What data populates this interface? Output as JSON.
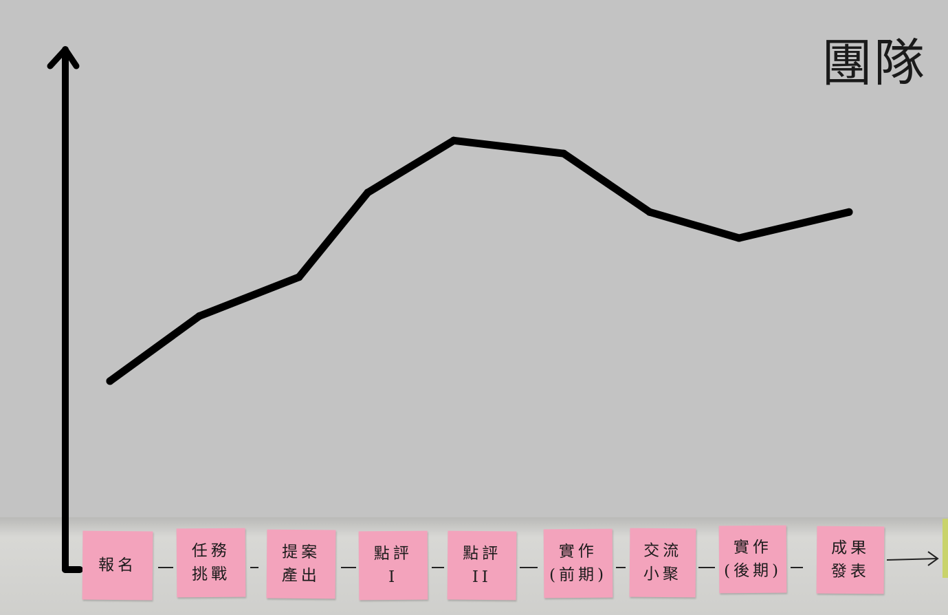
{
  "title": "團隊",
  "chart_data": {
    "type": "line",
    "title": "團隊",
    "xlabel": "",
    "ylabel": "",
    "categories": [
      "報名",
      "任務挑戰",
      "提案產出",
      "點評I",
      "點評II",
      "實作(前期)",
      "交流小聚",
      "實作(後期)",
      "成果發表"
    ],
    "series": [
      {
        "values": [
          2.9,
          3.9,
          4.5,
          5.8,
          6.6,
          6.4,
          5.5,
          5.1,
          5.5
        ]
      }
    ],
    "ylim": [
      0,
      8
    ],
    "grid": false,
    "line_color": "#000000"
  },
  "stickies": [
    {
      "line1": "報名",
      "line2": ""
    },
    {
      "line1": "任務",
      "line2": "挑戰"
    },
    {
      "line1": "提案",
      "line2": "產出"
    },
    {
      "line1": "點評",
      "line2": "I"
    },
    {
      "line1": "點評",
      "line2": "II"
    },
    {
      "line1": "實作",
      "line2": "(前期)"
    },
    {
      "line1": "交流",
      "line2": "小聚"
    },
    {
      "line1": "實作",
      "line2": "(後期)"
    },
    {
      "line1": "成果",
      "line2": "發表"
    }
  ],
  "colors": {
    "background": "#c3c3c3",
    "sticky": "#f3a3bc",
    "ink": "#000000"
  }
}
